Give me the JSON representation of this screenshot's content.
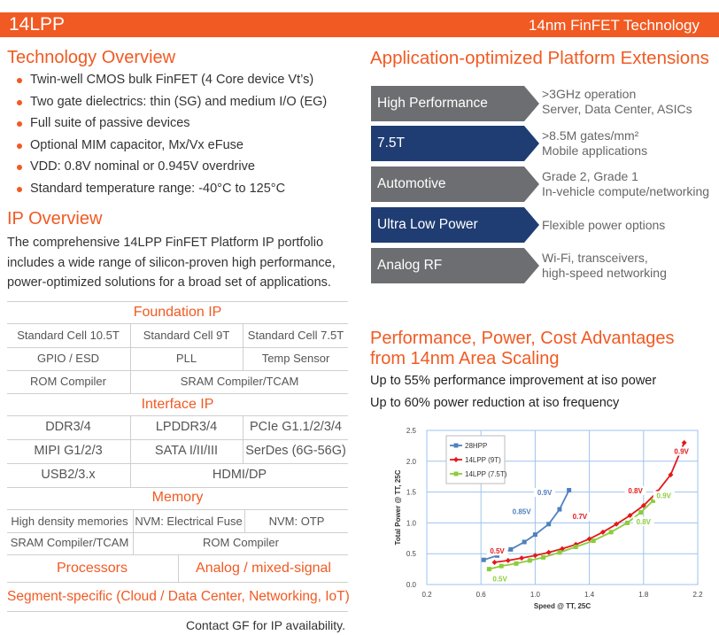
{
  "header": {
    "product": "14LPP",
    "tagline": "14nm FinFET Technology"
  },
  "tech_overview": {
    "title": "Technology Overview",
    "bullets": [
      "Twin-well CMOS bulk FinFET (4 Core device Vt’s)",
      "Two gate dielectrics: thin (SG) and medium I/O (EG)",
      "Full suite of passive devices",
      "Optional MIM capacitor,  Mx/Vx eFuse",
      "VDD: 0.8V nominal or 0.945V overdrive",
      "Standard temperature range: -40°C to 125°C"
    ]
  },
  "ip_overview": {
    "title": "IP Overview",
    "lines": [
      "The comprehensive 14LPP FinFET Platform IP portfolio",
      "includes a wide range of silicon-proven high performance,",
      "power-optimized solutions for a broad set of applications."
    ]
  },
  "ip_table": {
    "foundation": {
      "title": "Foundation IP",
      "row1": [
        "Standard Cell 10.5T",
        "Standard Cell 9T",
        "Standard Cell 7.5T"
      ],
      "row2": [
        "GPIO / ESD",
        "PLL",
        "Temp Sensor"
      ],
      "row3": [
        "ROM Compiler",
        "SRAM Compiler/TCAM"
      ]
    },
    "interface": {
      "title": "Interface IP",
      "row1": [
        "DDR3/4",
        "LPDDR3/4",
        "PCIe G1.1/2/3/4"
      ],
      "row2": [
        "MIPI G1/2/3",
        "SATA I/II/III",
        "SerDes (6G-56G)"
      ],
      "row3": [
        "USB2/3.x",
        "HDMI/DP"
      ]
    },
    "memory": {
      "title": "Memory",
      "row1": [
        "High density memories",
        "NVM: Electrical Fuse",
        "NVM: OTP"
      ],
      "row2": [
        "SRAM Compiler/TCAM",
        "ROM Compiler"
      ]
    },
    "processors": "Processors",
    "analog": "Analog / mixed-signal",
    "segment": "Segment-specific (Cloud / Data Center, Networking, IoT)",
    "contact": "Contact GF for IP availability."
  },
  "extensions": {
    "title": "Application-optimized Platform Extensions",
    "items": [
      {
        "label": "High Performance",
        "color": "#6d6e71",
        "line1": ">3GHz operation",
        "line2": "Server, Data Center, ASICs"
      },
      {
        "label": "7.5T",
        "color": "#1f3d73",
        "line1": ">8.5M gates/mm²",
        "line2": "Mobile applications"
      },
      {
        "label": "Automotive",
        "color": "#6d6e71",
        "line1": "Grade 2, Grade 1",
        "line2": "In-vehicle compute/networking"
      },
      {
        "label": "Ultra Low Power",
        "color": "#1f3d73",
        "line1": "Flexible power options",
        "line2": ""
      },
      {
        "label": "Analog RF",
        "color": "#6d6e71",
        "line1": "Wi-Fi, transceivers,",
        "line2": "high-speed networking"
      }
    ]
  },
  "advantages": {
    "title_line1": "Performance, Power, Cost Advantages",
    "title_line2": "from 14nm Area Scaling",
    "line1": "Up to 55% performance improvement at iso power",
    "line2": "Up to 60% power reduction at iso frequency"
  },
  "chart_data": {
    "type": "line",
    "xlabel": "Speed @ TT, 25C",
    "ylabel": "Total Power @ TT, 25C",
    "xlim": [
      0.2,
      2.2
    ],
    "ylim": [
      0.0,
      2.5
    ],
    "x_ticks": [
      "0.2",
      "0.6",
      "1.0",
      "1.4",
      "1.8",
      "2.2"
    ],
    "y_ticks": [
      "0.0",
      "0.5",
      "1.0",
      "1.5",
      "2.0",
      "2.5"
    ],
    "legend_position": "top-left",
    "series": [
      {
        "name": "28HPP",
        "color": "#4f81bd",
        "marker": "square",
        "x": [
          0.62,
          0.72,
          0.82,
          0.92,
          1.0,
          1.1,
          1.18,
          1.25
        ],
        "y": [
          0.4,
          0.47,
          0.57,
          0.69,
          0.81,
          0.98,
          1.22,
          1.53
        ]
      },
      {
        "name": "14LPP (9T)",
        "color": "#e31a1c",
        "marker": "diamond",
        "x": [
          0.7,
          0.8,
          0.9,
          1.0,
          1.1,
          1.2,
          1.3,
          1.4,
          1.5,
          1.6,
          1.7,
          1.8,
          1.9,
          2.0,
          2.1
        ],
        "y": [
          0.36,
          0.39,
          0.43,
          0.47,
          0.52,
          0.58,
          0.65,
          0.74,
          0.85,
          0.98,
          1.12,
          1.28,
          1.5,
          1.78,
          2.3
        ]
      },
      {
        "name": "14LPP (7.5T)",
        "color": "#8ccc3c",
        "marker": "square",
        "x": [
          0.66,
          0.75,
          0.86,
          0.96,
          1.06,
          1.18,
          1.3,
          1.43,
          1.56,
          1.68,
          1.78,
          1.87
        ],
        "y": [
          0.25,
          0.3,
          0.34,
          0.39,
          0.44,
          0.52,
          0.61,
          0.71,
          0.85,
          1.0,
          1.17,
          1.36
        ]
      }
    ],
    "annotations": [
      {
        "text": "0.9V",
        "x": 1.07,
        "y": 1.45,
        "color": "#4f81bd"
      },
      {
        "text": "0.85V",
        "x": 0.9,
        "y": 1.14,
        "color": "#4f81bd"
      },
      {
        "text": "0.5V",
        "x": 0.72,
        "y": 0.5,
        "color": "#e31a1c"
      },
      {
        "text": "0.7V",
        "x": 1.33,
        "y": 1.06,
        "color": "#e31a1c"
      },
      {
        "text": "0.8V",
        "x": 1.74,
        "y": 1.48,
        "color": "#e31a1c"
      },
      {
        "text": "0.9V",
        "x": 2.08,
        "y": 2.12,
        "color": "#e31a1c"
      },
      {
        "text": "0.5V",
        "x": 0.74,
        "y": 0.05,
        "color": "#8ccc3c"
      },
      {
        "text": "0.8V",
        "x": 1.8,
        "y": 0.98,
        "color": "#8ccc3c"
      },
      {
        "text": "0.9V",
        "x": 1.95,
        "y": 1.4,
        "color": "#8ccc3c"
      }
    ]
  }
}
